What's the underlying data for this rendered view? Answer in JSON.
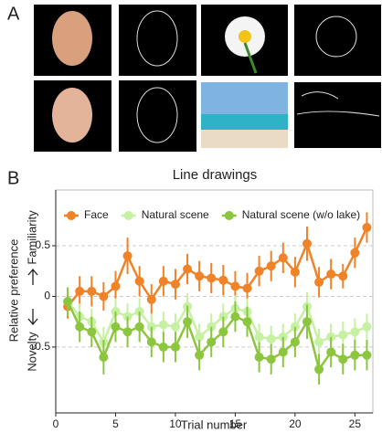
{
  "panels": {
    "a_label": "A",
    "b_label": "B"
  },
  "chart_data": {
    "type": "line",
    "title": "Line drawings",
    "xlabel": "Trial number",
    "ylabel": "Relative preference",
    "annotations": {
      "top": "Familiarity",
      "bottom": "Novelty"
    },
    "x": [
      1,
      2,
      3,
      4,
      5,
      6,
      7,
      8,
      9,
      10,
      11,
      12,
      13,
      14,
      15,
      16,
      17,
      18,
      19,
      20,
      21,
      22,
      23,
      24,
      25,
      26
    ],
    "xlim": [
      0,
      26.5
    ],
    "xticks": [
      0,
      5,
      10,
      15,
      20,
      25
    ],
    "ylim": [
      -1.15,
      1.05
    ],
    "yticks": [
      -0.5,
      0,
      0.5
    ],
    "grid": true,
    "legend": "top-left",
    "series": [
      {
        "name": "Face",
        "color": "#f08228",
        "values": [
          -0.1,
          0.05,
          0.05,
          0.0,
          0.1,
          0.4,
          0.15,
          -0.03,
          0.15,
          0.12,
          0.27,
          0.2,
          0.18,
          0.16,
          0.1,
          0.08,
          0.25,
          0.3,
          0.38,
          0.24,
          0.52,
          0.14,
          0.22,
          0.2,
          0.43,
          0.68
        ],
        "errors": [
          0.12,
          0.15,
          0.15,
          0.14,
          0.15,
          0.18,
          0.15,
          0.15,
          0.15,
          0.15,
          0.15,
          0.15,
          0.15,
          0.15,
          0.15,
          0.15,
          0.15,
          0.15,
          0.15,
          0.15,
          0.17,
          0.15,
          0.15,
          0.12,
          0.15,
          0.15
        ]
      },
      {
        "name": "Natural scene",
        "color": "#c6f0a2",
        "values": [
          -0.05,
          -0.2,
          -0.25,
          -0.45,
          -0.15,
          -0.2,
          -0.15,
          -0.3,
          -0.28,
          -0.3,
          -0.1,
          -0.4,
          -0.3,
          -0.2,
          -0.12,
          -0.15,
          -0.4,
          -0.42,
          -0.4,
          -0.3,
          -0.1,
          -0.45,
          -0.4,
          -0.38,
          -0.35,
          -0.3
        ],
        "errors": [
          0.12,
          0.13,
          0.13,
          0.15,
          0.13,
          0.13,
          0.13,
          0.13,
          0.13,
          0.13,
          0.13,
          0.13,
          0.13,
          0.13,
          0.13,
          0.13,
          0.13,
          0.13,
          0.13,
          0.13,
          0.14,
          0.13,
          0.13,
          0.13,
          0.13,
          0.13
        ]
      },
      {
        "name": "Natural scene (w/o lake)",
        "color": "#8cc63f",
        "values": [
          -0.05,
          -0.3,
          -0.35,
          -0.6,
          -0.3,
          -0.35,
          -0.3,
          -0.45,
          -0.5,
          -0.5,
          -0.25,
          -0.58,
          -0.45,
          -0.35,
          -0.2,
          -0.25,
          -0.6,
          -0.62,
          -0.55,
          -0.45,
          -0.25,
          -0.72,
          -0.55,
          -0.62,
          -0.58,
          -0.58
        ],
        "errors": [
          0.14,
          0.15,
          0.15,
          0.17,
          0.15,
          0.15,
          0.15,
          0.15,
          0.15,
          0.15,
          0.16,
          0.15,
          0.15,
          0.15,
          0.15,
          0.15,
          0.15,
          0.15,
          0.15,
          0.15,
          0.17,
          0.15,
          0.15,
          0.15,
          0.15,
          0.15
        ]
      }
    ]
  }
}
